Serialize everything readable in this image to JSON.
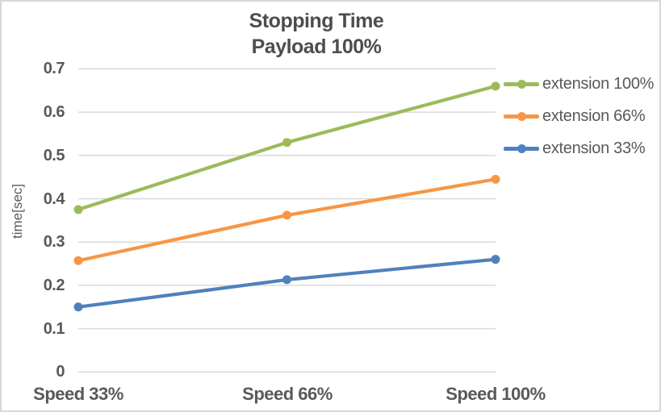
{
  "chart_data": {
    "type": "line",
    "title": "Stopping Time",
    "subtitle": "Payload 100%",
    "categories": [
      "Speed 33%",
      "Speed 66%",
      "Speed 100%"
    ],
    "series": [
      {
        "name": "extension 100%",
        "color": "#9BBB59",
        "values": [
          0.375,
          0.53,
          0.66
        ]
      },
      {
        "name": "extension 66%",
        "color": "#F79646",
        "values": [
          0.257,
          0.362,
          0.445
        ]
      },
      {
        "name": "extension 33%",
        "color": "#4F81BD",
        "values": [
          0.15,
          0.213,
          0.26
        ]
      }
    ],
    "xlabel": "",
    "ylabel": "time[sec]",
    "ylim": [
      0,
      0.7
    ],
    "yticks": [
      0,
      0.1,
      0.2,
      0.3,
      0.4,
      0.5,
      0.6,
      0.7
    ],
    "ytick_labels": [
      "0",
      "0.1",
      "0.2",
      "0.3",
      "0.4",
      "0.5",
      "0.6",
      "0.7"
    ],
    "grid": true,
    "legend_position": "right",
    "marker": "circle"
  },
  "colors": {
    "background": "#ffffff",
    "border": "#d8d8d8",
    "gridline": "#d9d9d9",
    "axis_text": "#595959",
    "title_text": "#4d4d4d"
  }
}
